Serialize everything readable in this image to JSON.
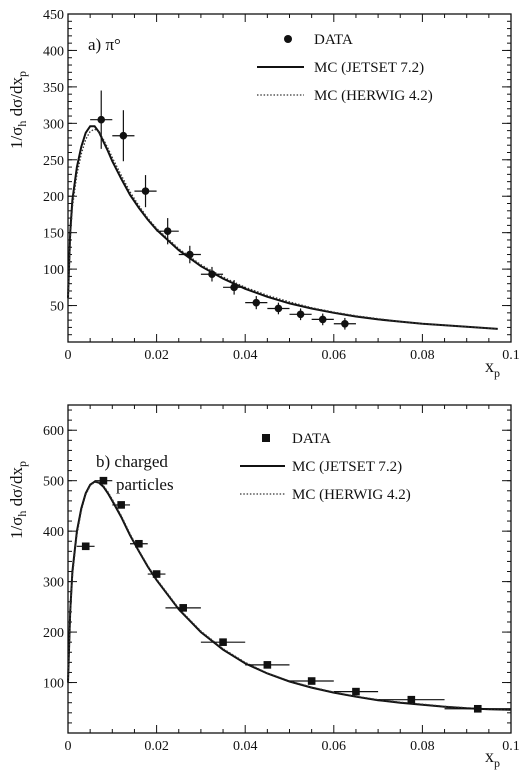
{
  "chart_data": [
    {
      "type": "scatter",
      "panel_label": "a) π°",
      "xlabel": "x",
      "xlabel_sub": "p",
      "ylabel": "1/σ",
      "ylabel_sub": "h",
      "ylabel_rest": " dσ/dx",
      "ylabel_sub2": "p",
      "xlim": [
        0,
        0.1
      ],
      "ylim": [
        0,
        450
      ],
      "xticks": [
        "0",
        "0.02",
        "0.04",
        "0.06",
        "0.08",
        "0.1"
      ],
      "yticks": [
        "50",
        "100",
        "150",
        "200",
        "250",
        "300",
        "350",
        "400",
        "450"
      ],
      "legend_position": "top-right",
      "legend": [
        "DATA",
        "MC (JETSET 7.2)",
        "MC (HERWIG 4.2)"
      ],
      "marker": "circle",
      "data": {
        "x": [
          0.0075,
          0.0125,
          0.0175,
          0.0225,
          0.0275,
          0.0325,
          0.0375,
          0.0425,
          0.0475,
          0.0525,
          0.0575,
          0.0625
        ],
        "y": [
          305,
          283,
          207,
          152,
          120,
          93,
          75,
          54,
          46,
          38,
          31,
          25
        ],
        "xerr": [
          0.0025,
          0.0025,
          0.0025,
          0.0025,
          0.0025,
          0.0025,
          0.0025,
          0.0025,
          0.0025,
          0.0025,
          0.0025,
          0.0025
        ],
        "yerr": [
          40,
          35,
          22,
          18,
          12,
          10,
          10,
          9,
          8,
          8,
          8,
          8
        ]
      },
      "series": [
        {
          "name": "MC (JETSET 7.2)",
          "style": "solid",
          "x": [
            0.0,
            0.0005,
            0.001,
            0.002,
            0.003,
            0.004,
            0.005,
            0.006,
            0.007,
            0.008,
            0.009,
            0.01,
            0.012,
            0.014,
            0.016,
            0.018,
            0.02,
            0.025,
            0.03,
            0.035,
            0.04,
            0.045,
            0.05,
            0.055,
            0.06,
            0.065,
            0.07,
            0.075,
            0.08,
            0.085,
            0.09,
            0.097
          ],
          "y": [
            60,
            150,
            195,
            240,
            268,
            287,
            296,
            296,
            288,
            275,
            262,
            248,
            224,
            202,
            184,
            168,
            154,
            126,
            104,
            87,
            73,
            62,
            53,
            46,
            40,
            35,
            31,
            28,
            25,
            23,
            21,
            18
          ]
        },
        {
          "name": "MC (HERWIG 4.2)",
          "style": "dotted",
          "x": [
            0.0,
            0.0005,
            0.001,
            0.002,
            0.003,
            0.004,
            0.005,
            0.006,
            0.007,
            0.008,
            0.009,
            0.01,
            0.012,
            0.014,
            0.016,
            0.018,
            0.02,
            0.025,
            0.03,
            0.035,
            0.04,
            0.045,
            0.05,
            0.055,
            0.06,
            0.065,
            0.07,
            0.075,
            0.08,
            0.085,
            0.09,
            0.097
          ],
          "y": [
            55,
            140,
            185,
            230,
            258,
            278,
            289,
            292,
            288,
            278,
            266,
            253,
            229,
            206,
            187,
            170,
            156,
            128,
            106,
            89,
            75,
            64,
            55,
            47,
            41,
            36,
            32,
            28,
            25,
            23,
            21,
            18
          ]
        }
      ]
    },
    {
      "type": "scatter",
      "panel_label_line1": "b) charged",
      "panel_label_line2": "particles",
      "xlabel": "x",
      "xlabel_sub": "p",
      "ylabel": "1/σ",
      "ylabel_sub": "h",
      "ylabel_rest": " dσ/dx",
      "ylabel_sub2": "p",
      "xlim": [
        0,
        0.1
      ],
      "ylim": [
        0,
        650
      ],
      "xticks": [
        "0",
        "0.02",
        "0.04",
        "0.06",
        "0.08",
        "0.1"
      ],
      "yticks": [
        "100",
        "200",
        "300",
        "400",
        "500",
        "600"
      ],
      "legend_position": "top-right",
      "legend": [
        "DATA",
        "MC (JETSET 7.2)",
        "MC (HERWIG 4.2)"
      ],
      "marker": "square",
      "data": {
        "x": [
          0.004,
          0.008,
          0.012,
          0.016,
          0.02,
          0.026,
          0.035,
          0.045,
          0.055,
          0.065,
          0.0775,
          0.0925
        ],
        "y": [
          370,
          500,
          452,
          375,
          315,
          248,
          180,
          135,
          103,
          82,
          66,
          48
        ],
        "xerr": [
          0.002,
          0.002,
          0.002,
          0.002,
          0.002,
          0.004,
          0.005,
          0.005,
          0.005,
          0.005,
          0.0075,
          0.0075
        ],
        "yerr": [
          6,
          6,
          6,
          5,
          5,
          4,
          3,
          3,
          3,
          3,
          3,
          3
        ]
      },
      "series": [
        {
          "name": "MC (JETSET 7.2)",
          "style": "solid",
          "x": [
            0.0,
            0.0005,
            0.001,
            0.002,
            0.003,
            0.004,
            0.005,
            0.006,
            0.007,
            0.008,
            0.009,
            0.01,
            0.012,
            0.014,
            0.016,
            0.018,
            0.02,
            0.025,
            0.03,
            0.035,
            0.04,
            0.045,
            0.05,
            0.055,
            0.06,
            0.065,
            0.07,
            0.075,
            0.08,
            0.085,
            0.09,
            0.095,
            0.1
          ],
          "y": [
            100,
            240,
            320,
            400,
            445,
            475,
            492,
            498,
            496,
            488,
            475,
            460,
            428,
            392,
            360,
            330,
            303,
            245,
            200,
            165,
            138,
            118,
            102,
            90,
            80,
            72,
            65,
            60,
            56,
            52,
            49,
            47,
            46
          ]
        },
        {
          "name": "MC (HERWIG 4.2)",
          "style": "dotted",
          "x": [
            0.0,
            0.0005,
            0.001,
            0.002,
            0.003,
            0.004,
            0.005,
            0.006,
            0.007,
            0.008,
            0.009,
            0.01,
            0.012,
            0.014,
            0.016,
            0.018,
            0.02,
            0.025,
            0.03,
            0.035,
            0.04,
            0.045,
            0.05,
            0.055,
            0.06,
            0.065,
            0.07,
            0.075,
            0.08,
            0.085,
            0.09,
            0.095,
            0.1
          ],
          "y": [
            95,
            230,
            310,
            392,
            440,
            472,
            490,
            497,
            497,
            490,
            478,
            463,
            431,
            395,
            362,
            332,
            305,
            247,
            202,
            167,
            140,
            119,
            103,
            91,
            81,
            73,
            66,
            61,
            57,
            53,
            50,
            47,
            46
          ]
        }
      ]
    }
  ]
}
